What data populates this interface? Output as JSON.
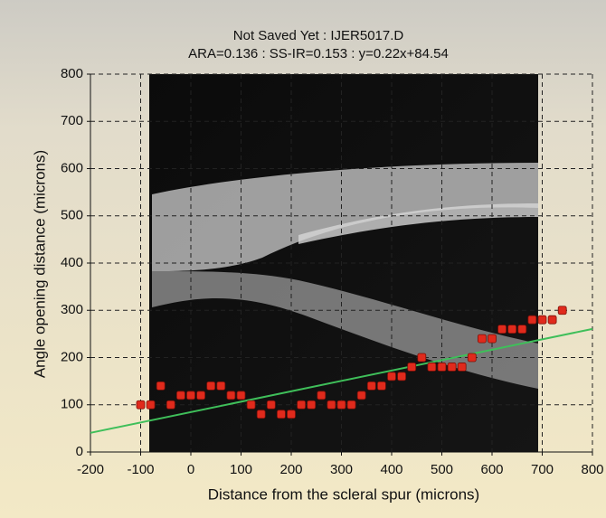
{
  "chart_data": {
    "type": "scatter",
    "title": "Not Saved Yet : IJER5017.D",
    "subtitle": "ARA=0.136 : SS-IR=0.153 : y=0.22x+84.54",
    "x_label": "Distance from the scleral spur (microns)",
    "y_label": "Angle opening distance (microns)",
    "x": [
      -100,
      -80,
      -60,
      -40,
      -20,
      0,
      20,
      40,
      60,
      80,
      100,
      120,
      140,
      160,
      180,
      200,
      220,
      240,
      260,
      280,
      300,
      320,
      340,
      360,
      380,
      400,
      420,
      440,
      460,
      480,
      500,
      520,
      540,
      560,
      580,
      600,
      620,
      640,
      660,
      680,
      700,
      720,
      740
    ],
    "values": [
      100,
      100,
      140,
      100,
      120,
      120,
      120,
      140,
      140,
      120,
      120,
      100,
      80,
      100,
      80,
      80,
      100,
      100,
      120,
      100,
      100,
      100,
      120,
      140,
      140,
      160,
      160,
      180,
      200,
      180,
      180,
      180,
      180,
      200,
      240,
      240,
      260,
      260,
      260,
      280,
      280,
      280,
      300
    ],
    "color": "#e02a1c",
    "fit": {
      "slope": 0.22,
      "intercept": 84.54,
      "color": "#3fbf5a"
    },
    "xlim": [
      -200,
      800
    ],
    "ylim": [
      0,
      800
    ],
    "xticks": [
      -200,
      -100,
      0,
      100,
      200,
      300,
      400,
      500,
      600,
      700,
      800
    ],
    "yticks": [
      0,
      100,
      200,
      300,
      400,
      500,
      600,
      700,
      800
    ],
    "grid": true
  }
}
